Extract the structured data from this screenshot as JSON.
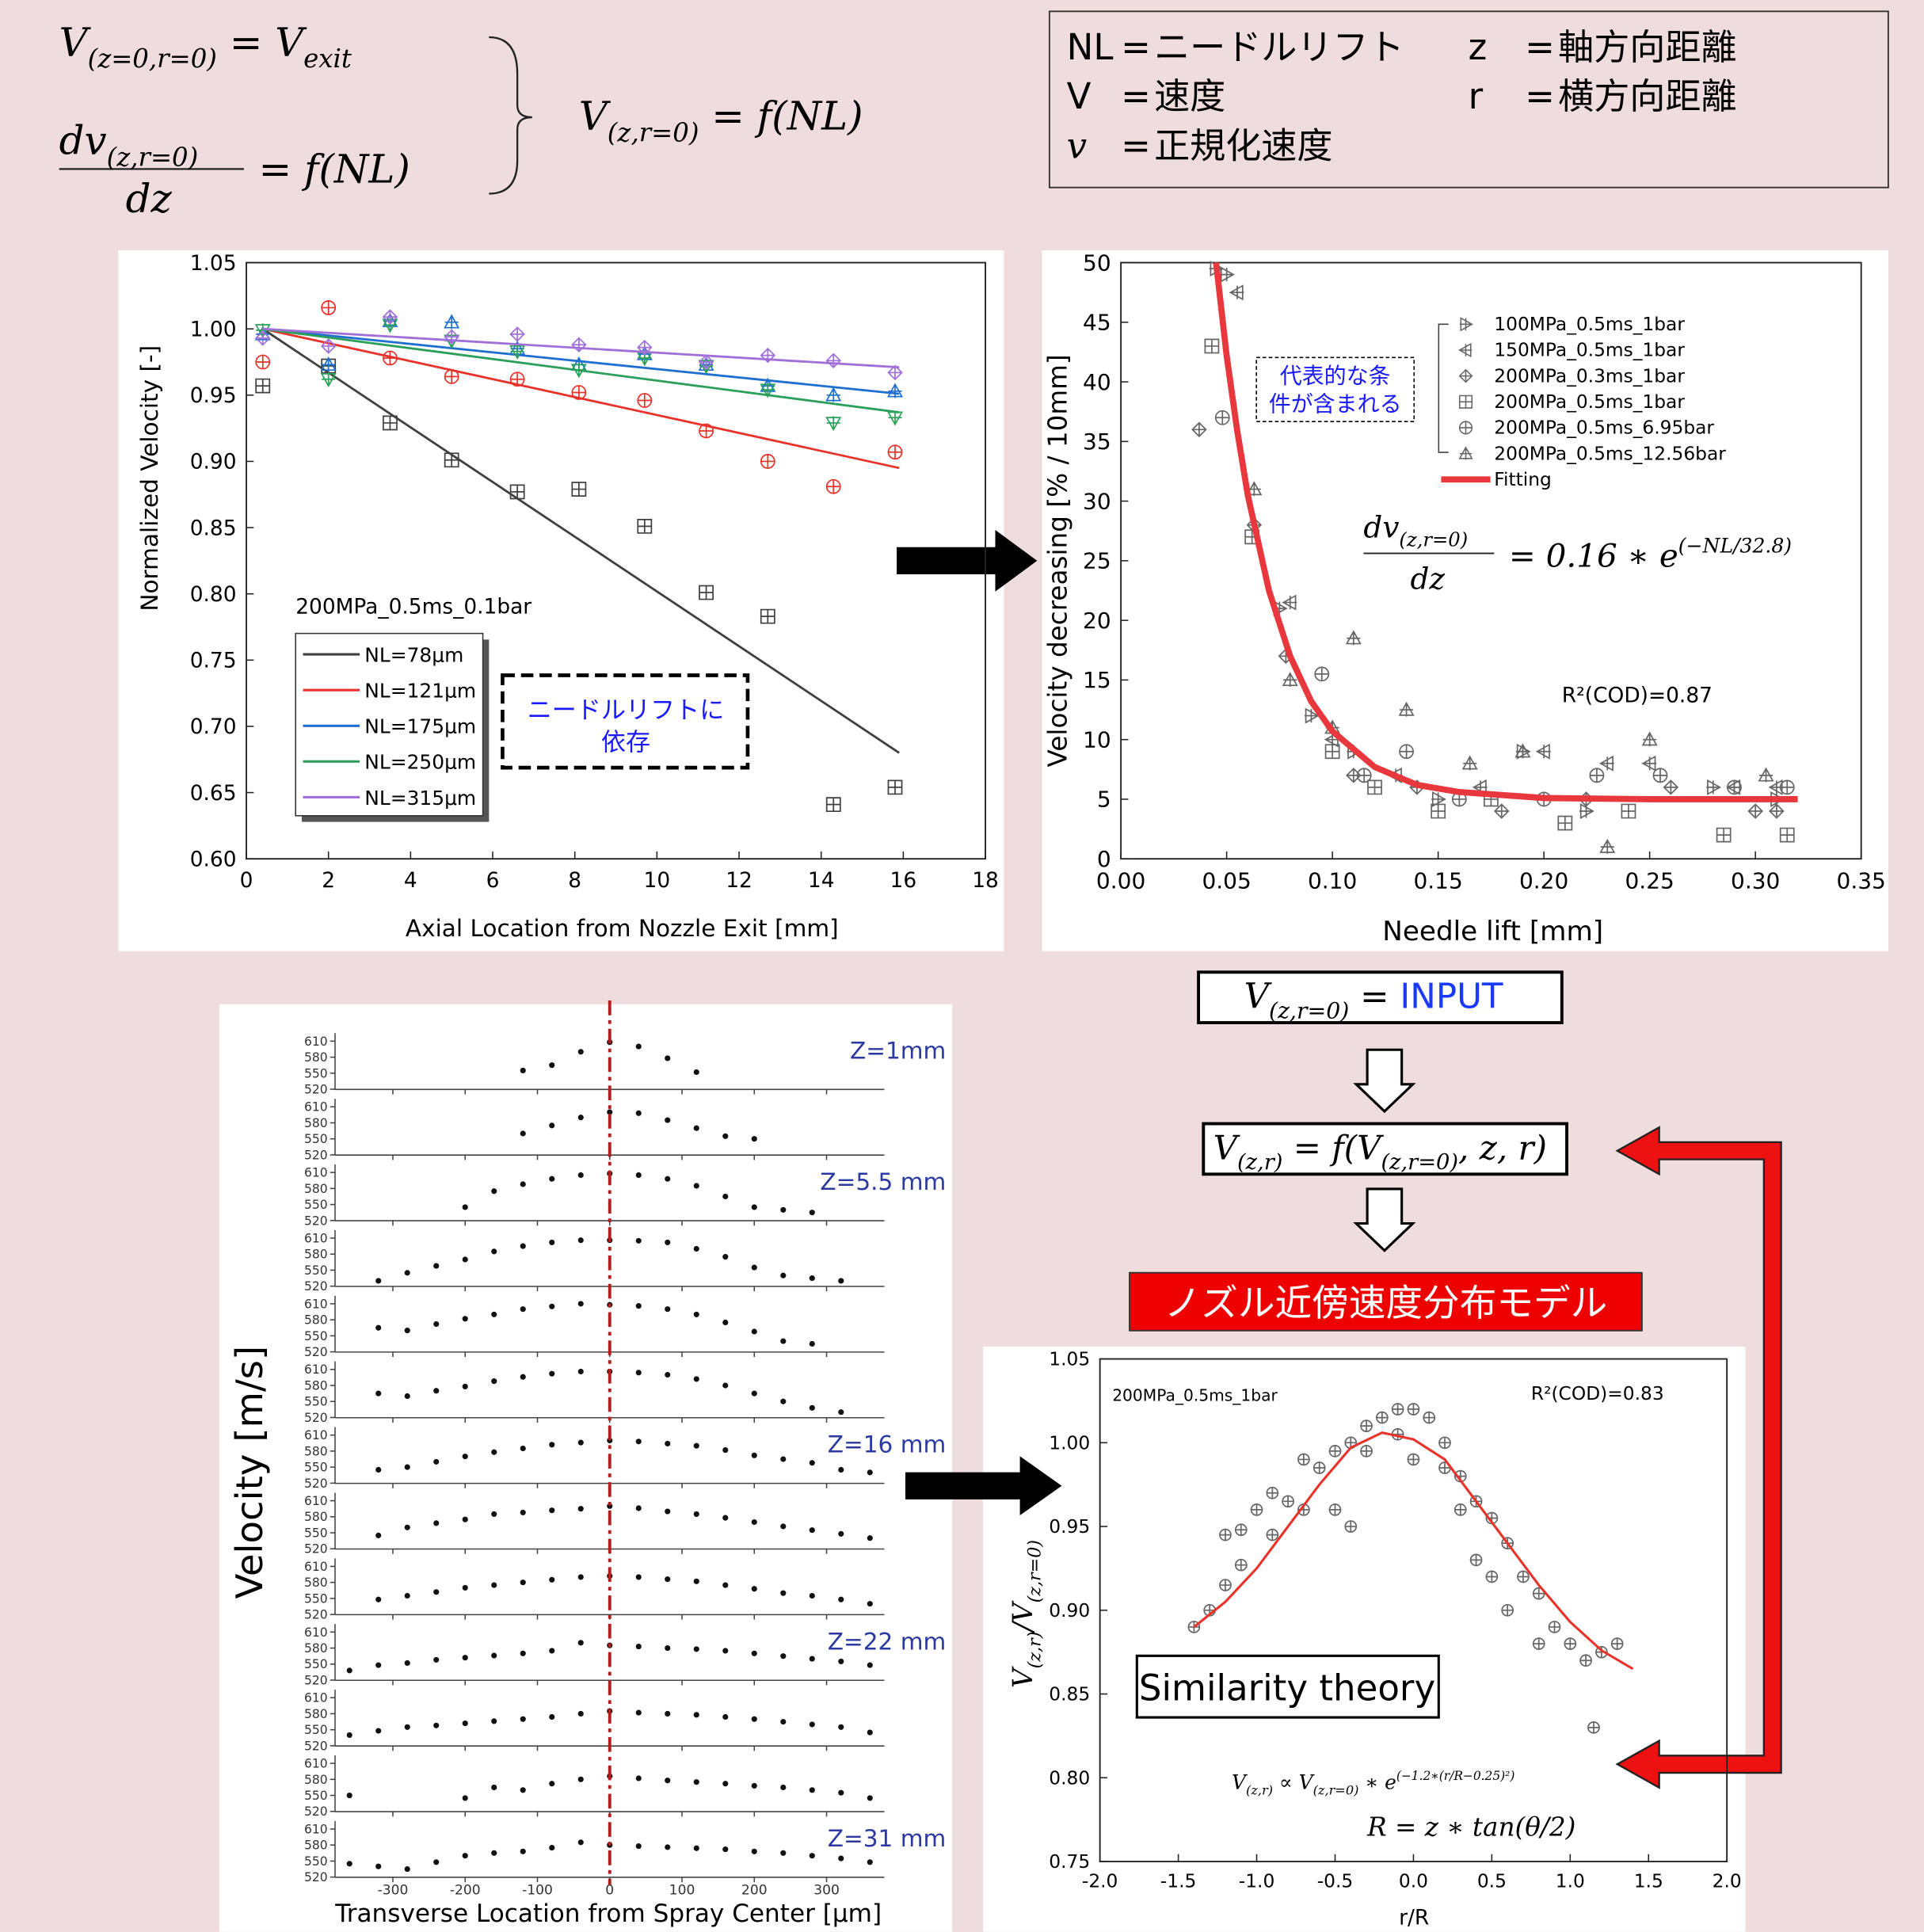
{
  "equations": {
    "exit": [
      [
        "V",
        "(z=0,r=0)"
      ],
      [
        " = V",
        "exit"
      ]
    ],
    "gradient": {
      "numerator": [
        [
          "dv",
          "(z,r=0)"
        ]
      ],
      "denominator": "dz",
      "rhs": "= f(NL)"
    },
    "result": [
      [
        "V",
        "(z,r=0)"
      ],
      [
        " = f(NL)"
      ]
    ]
  },
  "notation": [
    [
      "NL",
      "=",
      "ニードルリフト"
    ],
    [
      "V",
      "=",
      "速度"
    ],
    [
      "v",
      "=",
      "正規化速度"
    ],
    [
      "z",
      "=",
      "軸方向距離"
    ],
    [
      "r",
      "=",
      "横方向距離"
    ]
  ],
  "flow": {
    "input": {
      "formula": [
        [
          "V",
          "(z,r=0)"
        ],
        [
          " = "
        ]
      ],
      "word": "INPUT"
    },
    "model": [
      [
        "V",
        "(z,r)"
      ],
      [
        " = f(V",
        "(z,r=0)"
      ],
      [
        ", z, r)"
      ]
    ],
    "title": "ノズル近傍速度分布モデル"
  },
  "chart_data": [
    {
      "type": "line",
      "x_label": "Axial Location from Nozzle  Exit [mm]",
      "y_label": "Normalized Velocity [-]",
      "xlim": [
        0,
        18
      ],
      "xticks": [
        0,
        2,
        4,
        6,
        8,
        10,
        12,
        14,
        16,
        18
      ],
      "ylim": [
        0.6,
        1.05
      ],
      "yticks": [
        {
          "value": 0.6,
          "label": "0.60"
        },
        0.65,
        {
          "value": 0.7,
          "label": "0.70"
        },
        0.75,
        {
          "value": 0.8,
          "label": "0.80"
        },
        0.85,
        {
          "value": 0.9,
          "label": "0.90"
        },
        0.95,
        {
          "value": 1,
          "label": "1.00"
        },
        1.05
      ],
      "annotation": "200MPa_0.5ms_0.1bar",
      "note": [
        "ニードルリフトに",
        "依存"
      ],
      "points_x": [
        0.4,
        2,
        3.5,
        5,
        6.6,
        8.1,
        9.7,
        11.2,
        12.7,
        14.3,
        15.8
      ],
      "series": [
        {
          "name": "NL=78μm",
          "color": "#404040",
          "marker": "square-plus",
          "x": [
            0.4,
            15.9
          ],
          "values": [
            1.0,
            0.68
          ],
          "points": [
            0.957,
            0.972,
            0.929,
            0.901,
            0.877,
            0.879,
            0.851,
            0.801,
            0.783,
            0.641,
            0.654
          ]
        },
        {
          "name": "NL=121μm",
          "color": "#e8332a",
          "marker": "circle-plus",
          "x": [
            0.4,
            15.9
          ],
          "values": [
            1.0,
            0.895
          ],
          "points": [
            0.975,
            1.016,
            0.978,
            0.964,
            0.962,
            0.952,
            0.946,
            0.923,
            0.9,
            0.881,
            0.907
          ]
        },
        {
          "name": "NL=175μm",
          "color": "#1f6fd1",
          "marker": "triangle-up",
          "x": [
            0.4,
            15.9
          ],
          "values": [
            1.0,
            0.951
          ],
          "points": [
            0.996,
            0.973,
            1.006,
            1.005,
            0.985,
            0.973,
            0.981,
            0.973,
            0.957,
            0.95,
            0.953
          ]
        },
        {
          "name": "NL=250μm",
          "color": "#2ca05a",
          "marker": "triangle-down",
          "x": [
            0.4,
            15.9
          ],
          "values": [
            1.0,
            0.937
          ],
          "points": [
            0.999,
            0.962,
            1.003,
            0.991,
            0.983,
            0.969,
            0.978,
            0.972,
            0.954,
            0.929,
            0.933
          ]
        },
        {
          "name": "NL=315μm",
          "color": "#a070d8",
          "marker": "diamond-plus",
          "x": [
            0.4,
            15.9
          ],
          "values": [
            1.0,
            0.971
          ],
          "points": [
            0.993,
            0.987,
            1.009,
            0.994,
            0.996,
            0.988,
            0.986,
            0.975,
            0.98,
            0.976,
            0.967
          ]
        }
      ]
    },
    {
      "type": "scatter",
      "x_label": "Needle  lift [mm]",
      "y_label": "Velocity decreasing [% / 10mm]",
      "xlim": [
        0,
        0.35
      ],
      "xticks": [
        {
          "value": 0,
          "label": "0.00"
        },
        0.05,
        {
          "value": 0.1,
          "label": "0.10"
        },
        0.15,
        {
          "value": 0.2,
          "label": "0.20"
        },
        0.25,
        {
          "value": 0.3,
          "label": "0.30"
        },
        0.35
      ],
      "ylim": [
        0,
        50
      ],
      "yticks": [
        0,
        5,
        10,
        15,
        20,
        25,
        30,
        35,
        40,
        45,
        50
      ],
      "note": [
        "代表的な条",
        "件が含まれる"
      ],
      "equation": {
        "numerator": [
          [
            "dv",
            "(z,r=0)"
          ]
        ],
        "denominator": "dz",
        "rhs": "= 0.16 ∗ e",
        "exponent": "(−NL/32.8)"
      },
      "r2": "R²(COD)=0.87",
      "series": [
        {
          "name": "100MPa_0.5ms_1bar",
          "color": "#666666",
          "marker": "triangle-right",
          "x": [
            0.045,
            0.05,
            0.075,
            0.09,
            0.11,
            0.15,
            0.19,
            0.22,
            0.28,
            0.31
          ],
          "values": [
            49.5,
            49,
            21,
            12,
            9,
            5,
            9,
            4,
            6,
            5
          ]
        },
        {
          "name": "150MPa_0.5ms_1bar",
          "color": "#666666",
          "marker": "triangle-left",
          "x": [
            0.055,
            0.08,
            0.1,
            0.13,
            0.17,
            0.2,
            0.23,
            0.25,
            0.29,
            0.31
          ],
          "values": [
            47.5,
            21.5,
            10,
            7,
            6,
            9,
            8,
            8,
            6,
            6
          ]
        },
        {
          "name": "200MPa_0.3ms_1bar",
          "color": "#666666",
          "marker": "diamond-plus",
          "x": [
            0.037,
            0.063,
            0.078,
            0.11,
            0.14,
            0.18,
            0.22,
            0.26,
            0.3,
            0.31
          ],
          "values": [
            36,
            28,
            17,
            7,
            6,
            4,
            5,
            6,
            4,
            4
          ]
        },
        {
          "name": "200MPa_0.5ms_1bar",
          "color": "#666666",
          "marker": "square-plus",
          "x": [
            0.043,
            0.062,
            0.1,
            0.12,
            0.15,
            0.175,
            0.21,
            0.24,
            0.285,
            0.315
          ],
          "values": [
            43,
            27,
            9,
            6,
            4,
            5,
            3,
            4,
            2,
            2
          ]
        },
        {
          "name": "200MPa_0.5ms_6.95bar",
          "color": "#666666",
          "marker": "circle-plus",
          "x": [
            0.048,
            0.095,
            0.115,
            0.135,
            0.16,
            0.2,
            0.225,
            0.255,
            0.29,
            0.315
          ],
          "values": [
            37,
            15.5,
            7,
            9,
            5,
            5,
            7,
            7,
            6,
            6
          ]
        },
        {
          "name": "200MPa_0.5ms_12.56bar",
          "color": "#666666",
          "marker": "triangle-up",
          "x": [
            0.063,
            0.08,
            0.1,
            0.11,
            0.135,
            0.165,
            0.19,
            0.23,
            0.25,
            0.305
          ],
          "values": [
            31,
            15,
            11,
            18.5,
            12.5,
            8,
            9,
            1,
            10,
            7
          ]
        },
        {
          "name": "Fitting",
          "color": "#e8383d",
          "x": [
            0.045,
            0.05,
            0.055,
            0.06,
            0.07,
            0.08,
            0.09,
            0.1,
            0.12,
            0.14,
            0.16,
            0.2,
            0.25,
            0.32
          ],
          "values": [
            50,
            42.2,
            35.9,
            30.5,
            22.5,
            17,
            13.2,
            10.7,
            7.7,
            6.2,
            5.6,
            5.1,
            5,
            5
          ]
        }
      ]
    },
    {
      "type": "panel",
      "x_label": "Transverse Location from Spray Center [μm]",
      "y_label": "Velocity [m/s]",
      "xlim": [
        -380,
        380
      ],
      "xticks": [
        -300,
        -200,
        -100,
        0,
        100,
        200,
        300
      ],
      "ylim": [
        515,
        625
      ],
      "yticks": [
        520,
        550,
        580,
        610
      ],
      "x": [
        -360,
        -320,
        -280,
        -240,
        -200,
        -160,
        -120,
        -80,
        -40,
        0,
        40,
        80,
        120,
        160,
        200,
        240,
        280,
        320,
        360
      ],
      "panels": [
        {
          "label": "Z=1mm",
          "values": [
            null,
            null,
            null,
            null,
            null,
            null,
            555,
            565,
            590,
            608,
            600,
            578,
            552,
            null,
            null,
            null,
            null,
            null,
            null
          ]
        },
        {
          "values": [
            null,
            null,
            null,
            null,
            null,
            null,
            560,
            575,
            590,
            600,
            598,
            585,
            570,
            555,
            550,
            null,
            null,
            null,
            null
          ]
        },
        {
          "label": "Z=5.5 mm",
          "values": [
            null,
            null,
            null,
            null,
            545,
            575,
            588,
            598,
            605,
            608,
            605,
            598,
            585,
            565,
            545,
            540,
            535,
            null,
            null
          ]
        },
        {
          "values": [
            null,
            530,
            545,
            558,
            570,
            585,
            595,
            602,
            606,
            606,
            605,
            602,
            590,
            575,
            555,
            540,
            535,
            530,
            null
          ]
        },
        {
          "values": [
            null,
            565,
            560,
            572,
            582,
            590,
            600,
            605,
            610,
            608,
            606,
            600,
            590,
            575,
            558,
            540,
            535,
            null,
            null
          ]
        },
        {
          "values": [
            null,
            565,
            560,
            570,
            578,
            588,
            596,
            602,
            606,
            606,
            604,
            600,
            592,
            580,
            565,
            550,
            538,
            530,
            null
          ]
        },
        {
          "label": "Z=16 mm",
          "values": [
            null,
            545,
            550,
            560,
            570,
            578,
            585,
            592,
            596,
            600,
            598,
            594,
            590,
            582,
            572,
            565,
            558,
            545,
            540
          ]
        },
        {
          "values": [
            null,
            545,
            560,
            568,
            575,
            585,
            588,
            592,
            595,
            600,
            596,
            590,
            585,
            578,
            570,
            562,
            555,
            548,
            540
          ]
        },
        {
          "values": [
            null,
            548,
            555,
            562,
            570,
            575,
            580,
            585,
            590,
            592,
            590,
            586,
            582,
            575,
            568,
            560,
            555,
            548,
            540
          ]
        },
        {
          "label": "Z=22 mm",
          "values": [
            538,
            548,
            552,
            558,
            562,
            566,
            570,
            575,
            590,
            585,
            583,
            580,
            578,
            575,
            570,
            565,
            560,
            555,
            548
          ]
        },
        {
          "values": [
            540,
            548,
            555,
            558,
            562,
            566,
            570,
            574,
            580,
            585,
            582,
            580,
            578,
            574,
            570,
            565,
            560,
            555,
            545
          ]
        },
        {
          "values": [
            550,
            null,
            null,
            null,
            545,
            565,
            560,
            572,
            580,
            586,
            582,
            578,
            575,
            572,
            568,
            565,
            560,
            555,
            545
          ]
        },
        {
          "label": "Z=31 mm",
          "values": [
            545,
            540,
            535,
            548,
            560,
            565,
            568,
            575,
            585,
            580,
            578,
            576,
            574,
            572,
            568,
            565,
            560,
            555,
            548
          ]
        }
      ]
    },
    {
      "type": "scatter",
      "x_label": "r/R",
      "y_label": [
        [
          "V",
          "(z,r)"
        ],
        [
          "/V",
          "(z,r=0)"
        ]
      ],
      "xlim": [
        -2,
        2
      ],
      "xticks": [
        {
          "value": -2,
          "label": "-2.0"
        },
        -1.5,
        {
          "value": -1,
          "label": "-1.0"
        },
        -0.5,
        {
          "value": 0,
          "label": "0.0"
        },
        0.5,
        {
          "value": 1,
          "label": "1.0"
        },
        1.5,
        {
          "value": 2,
          "label": "2.0"
        }
      ],
      "ylim": [
        0.75,
        1.05
      ],
      "yticks": [
        0.75,
        {
          "value": 0.8,
          "label": "0.80"
        },
        0.85,
        {
          "value": 0.9,
          "label": "0.90"
        },
        0.95,
        {
          "value": 1,
          "label": "1.00"
        },
        1.05
      ],
      "annotation": "200MPa_0.5ms_1bar",
      "r2": "R²(COD)=0.83",
      "box_text": "Similarity theory",
      "formula": [
        [
          "V",
          "(z,r)"
        ],
        [
          " ∝ V",
          "(z,r=0)"
        ],
        [
          " ∗ e"
        ]
      ],
      "formula_exponent": "(−1.2∗(r/R−0.25)²)",
      "radius": "R = z ∗ tan(θ/2)",
      "series": [
        {
          "color": "#666666",
          "marker": "circle-plus",
          "x": [
            -1.4,
            -1.3,
            -1.2,
            -1.1,
            -1.2,
            -1.1,
            -1.0,
            -0.9,
            -0.9,
            -0.8,
            -0.7,
            -0.7,
            -0.6,
            -0.5,
            -0.5,
            -0.4,
            -0.3,
            -0.3,
            -0.2,
            -0.1,
            -0.1,
            0.0,
            0.0,
            0.1,
            0.2,
            0.2,
            0.3,
            0.3,
            0.4,
            0.4,
            0.5,
            0.5,
            0.6,
            0.6,
            0.7,
            0.8,
            0.8,
            0.9,
            1.0,
            1.1,
            1.2,
            1.3,
            1.15,
            -0.4
          ],
          "values": [
            0.89,
            0.9,
            0.915,
            0.927,
            0.945,
            0.948,
            0.96,
            0.945,
            0.97,
            0.965,
            0.96,
            0.99,
            0.985,
            0.995,
            0.96,
            1.0,
            1.01,
            0.995,
            1.015,
            1.02,
            1.005,
            1.02,
            0.99,
            1.015,
            1.0,
            0.985,
            0.98,
            0.96,
            0.965,
            0.93,
            0.955,
            0.92,
            0.94,
            0.9,
            0.92,
            0.91,
            0.88,
            0.89,
            0.88,
            0.87,
            0.875,
            0.88,
            0.83,
            0.95
          ]
        },
        {
          "color": "#e8332a",
          "x": [
            -1.4,
            -1.2,
            -1.0,
            -0.8,
            -0.6,
            -0.4,
            -0.2,
            0.0,
            0.2,
            0.4,
            0.6,
            0.8,
            1.0,
            1.2,
            1.4
          ],
          "values": [
            0.89,
            0.905,
            0.925,
            0.95,
            0.975,
            0.997,
            1.006,
            1.002,
            0.99,
            0.965,
            0.94,
            0.915,
            0.893,
            0.876,
            0.865
          ]
        }
      ]
    }
  ]
}
